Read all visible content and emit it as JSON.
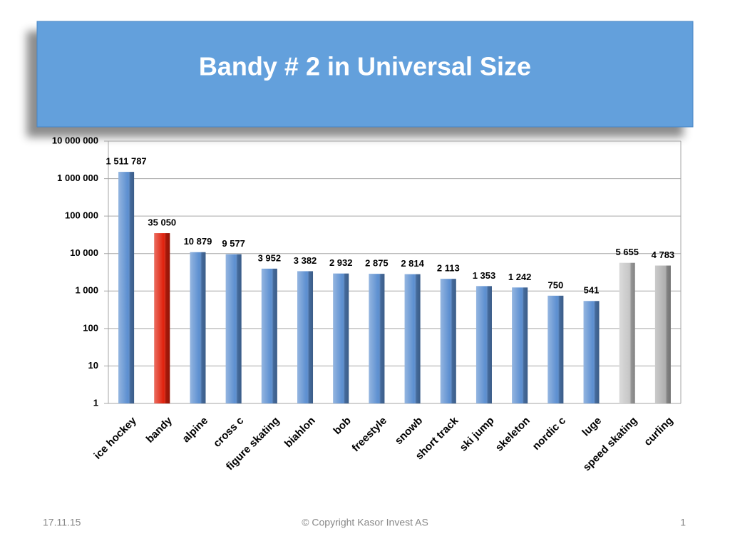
{
  "chart_data": {
    "type": "bar",
    "title": "Bandy # 2 in Universal Size",
    "categories": [
      "ice hockey",
      "bandy",
      "alpine",
      "cross c",
      "figure skating",
      "biahlon",
      "bob",
      "freestyle",
      "snowb",
      "short track",
      "ski jump",
      "skeleton",
      "nordic c",
      "luge",
      "speed skating",
      "curling"
    ],
    "values": [
      1511787,
      35050,
      10879,
      9577,
      3952,
      3382,
      2932,
      2875,
      2814,
      2113,
      1353,
      1242,
      750,
      541,
      5655,
      4783
    ],
    "value_labels": [
      "1 511 787",
      "35 050",
      "10 879",
      "9 577",
      "3 952",
      "3 382",
      "2 932",
      "2 875",
      "2 814",
      "2 113",
      "1 353",
      "1 242",
      "750",
      "541",
      "5 655",
      "4 783"
    ],
    "colors": [
      "#5b8ed0",
      "#e0200c",
      "#5b8ed0",
      "#5b8ed0",
      "#5b8ed0",
      "#5b8ed0",
      "#5b8ed0",
      "#5b8ed0",
      "#5b8ed0",
      "#5b8ed0",
      "#5b8ed0",
      "#5b8ed0",
      "#5b8ed0",
      "#5b8ed0",
      "#c8c8c8",
      "#b0b0b0"
    ],
    "ylim": [
      1,
      10000000
    ],
    "log_scale": true,
    "grid": true,
    "yticks": [
      1,
      10,
      100,
      {
        "value": 1000,
        "label": "1 000"
      },
      {
        "value": 10000,
        "label": "10 000"
      },
      {
        "value": 100000,
        "label": "100 000"
      },
      {
        "value": 1000000,
        "label": "1 000 000"
      },
      {
        "value": 10000000,
        "label": "10 000 000"
      }
    ]
  },
  "footer": {
    "date": "17.11.15",
    "copyright": "© Copyright Kasor Invest AS",
    "page": "1"
  }
}
